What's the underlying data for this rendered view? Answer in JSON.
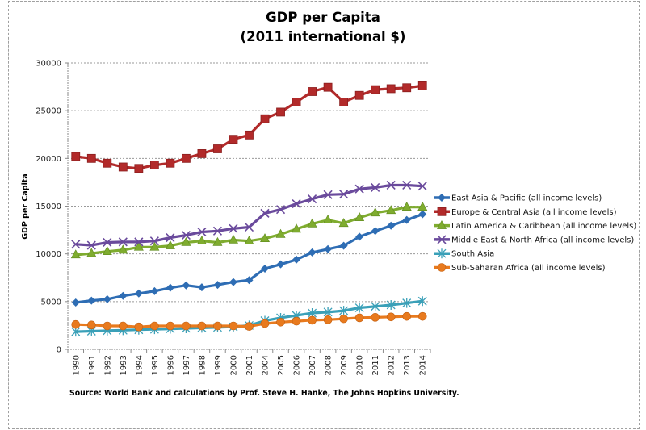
{
  "chart_data": {
    "type": "line",
    "title_line1": "GDP per Capita",
    "title_line2": "(2011 international $)",
    "xlabel": "",
    "ylabel": "GDP per Capita",
    "ylim": [
      0,
      30000
    ],
    "yticks": [
      0,
      5000,
      10000,
      15000,
      20000,
      25000,
      30000
    ],
    "grid": true,
    "legend_position": "right",
    "source": "Source: World Bank and calculations by Prof. Steve H. Hanke, The Johns Hopkins University.",
    "categories": [
      "1990",
      "1991",
      "1992",
      "1993",
      "1994",
      "1995",
      "1996",
      "1997",
      "1998",
      "1999",
      "2000",
      "2001",
      "2004",
      "2005",
      "2006",
      "2007",
      "2008",
      "2009",
      "2010",
      "2011",
      "2012",
      "2013",
      "2014"
    ],
    "series": [
      {
        "name": "East Asia & Pacific (all income levels)",
        "color": "#2e6db4",
        "marker": "diamond",
        "values": [
          4900,
          5100,
          5250,
          5600,
          5850,
          6100,
          6450,
          6700,
          6500,
          6750,
          7050,
          7250,
          8450,
          8900,
          9400,
          10150,
          10500,
          10850,
          11800,
          12400,
          12950,
          13550,
          14150
        ]
      },
      {
        "name": "Europe & Central Asia (all income levels)",
        "color": "#b22a2a",
        "marker": "square",
        "values": [
          20200,
          20000,
          19500,
          19100,
          18950,
          19300,
          19500,
          20000,
          20500,
          21000,
          22000,
          22450,
          24150,
          24850,
          25900,
          27000,
          27450,
          25900,
          26600,
          27200,
          27300,
          27400,
          27600
        ]
      },
      {
        "name": "Latin America & Caribbean (all income levels)",
        "color": "#7fac2f",
        "marker": "triangle",
        "values": [
          9900,
          10050,
          10250,
          10400,
          10700,
          10700,
          10850,
          11200,
          11350,
          11200,
          11450,
          11350,
          11600,
          12050,
          12600,
          13150,
          13550,
          13200,
          13800,
          14300,
          14550,
          14900,
          14900
        ]
      },
      {
        "name": "Middle East & North Africa (all income levels)",
        "color": "#6a4a9c",
        "marker": "x",
        "values": [
          11000,
          10900,
          11200,
          11250,
          11250,
          11350,
          11700,
          11950,
          12300,
          12400,
          12650,
          12800,
          14250,
          14650,
          15250,
          15750,
          16200,
          16250,
          16800,
          16950,
          17200,
          17200,
          17100
        ]
      },
      {
        "name": "South Asia",
        "color": "#3aa0b8",
        "marker": "star",
        "values": [
          1850,
          1900,
          1950,
          2000,
          2050,
          2100,
          2150,
          2200,
          2250,
          2300,
          2350,
          2500,
          3000,
          3300,
          3550,
          3800,
          3900,
          4050,
          4350,
          4500,
          4650,
          4850,
          5050
        ]
      },
      {
        "name": "Sub-Saharan Africa (all income levels)",
        "color": "#e87a1e",
        "marker": "circle",
        "values": [
          2600,
          2550,
          2450,
          2450,
          2350,
          2450,
          2450,
          2450,
          2450,
          2450,
          2450,
          2400,
          2700,
          2850,
          2950,
          3050,
          3100,
          3200,
          3300,
          3350,
          3400,
          3450,
          3450
        ]
      }
    ]
  }
}
